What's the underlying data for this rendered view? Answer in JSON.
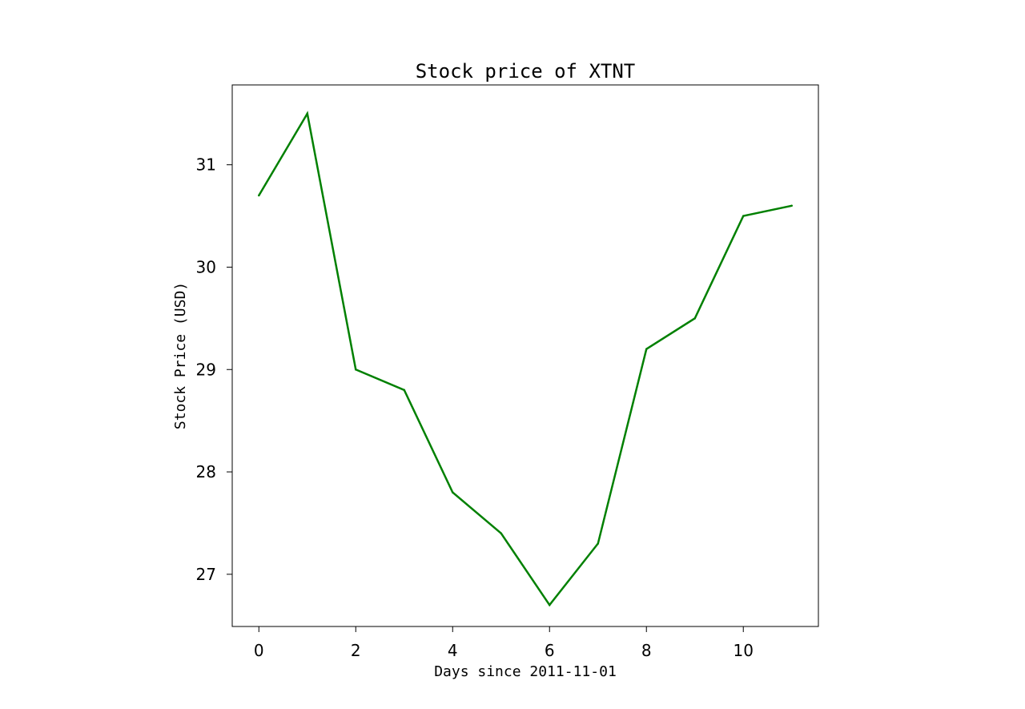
{
  "chart_data": {
    "type": "line",
    "title": "Stock price of XTNT",
    "xlabel": "Days since 2011-11-01",
    "ylabel": "Stock Price (USD)",
    "x": [
      0,
      1,
      2,
      3,
      4,
      5,
      6,
      7,
      8,
      9,
      10,
      11
    ],
    "series": [
      {
        "name": "",
        "color": "#008000",
        "values": [
          30.7,
          31.5,
          29.0,
          28.8,
          27.8,
          27.4,
          26.7,
          27.3,
          29.2,
          29.5,
          30.5,
          30.6
        ]
      }
    ],
    "xticks": [
      "0",
      "2",
      "4",
      "6",
      "8",
      "10"
    ],
    "yticks": [
      "27",
      "28",
      "29",
      "30",
      "31"
    ],
    "grid": false,
    "legend": false
  }
}
